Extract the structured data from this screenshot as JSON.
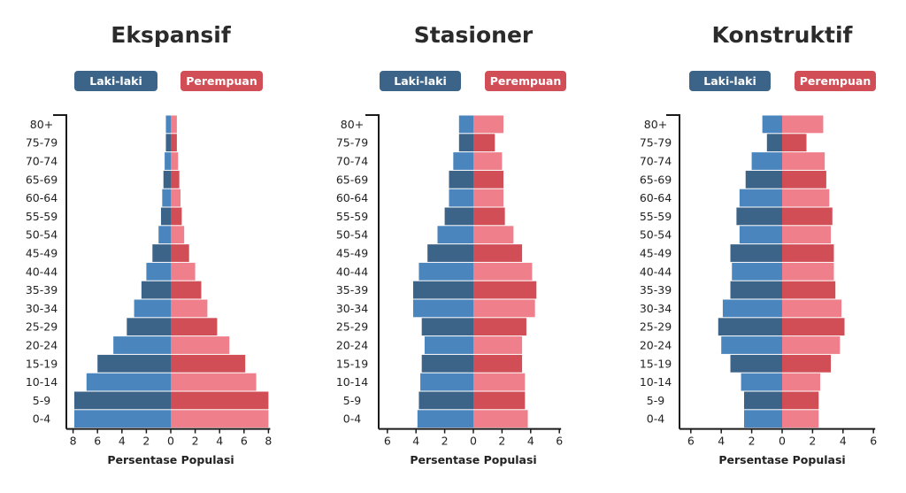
{
  "colors": {
    "male_dark": "#3c6488",
    "male_light": "#4a86bd",
    "female_dark": "#d14e57",
    "female_light": "#ef7f8b",
    "axis": "#1a1a1a"
  },
  "legend": {
    "male": "Laki-laki",
    "female": "Perempuan"
  },
  "xlabel": "Persentase Populasi",
  "chart_data": [
    {
      "type": "bar",
      "title": "Ekspansif",
      "xlabel": "Persentase Populasi",
      "xlim": [
        -8,
        8
      ],
      "xticks": [
        8,
        6,
        4,
        2,
        0,
        2,
        4,
        6,
        8
      ],
      "categories": [
        "0-4",
        "5-9",
        "10-14",
        "15-19",
        "20-24",
        "25-29",
        "30-34",
        "35-39",
        "40-44",
        "45-49",
        "50-54",
        "55-59",
        "60-64",
        "65-69",
        "70-74",
        "75-79",
        "80+"
      ],
      "series": [
        {
          "name": "Laki-laki",
          "values": [
            7.9,
            7.9,
            6.9,
            6.0,
            4.7,
            3.6,
            3.0,
            2.4,
            2.0,
            1.5,
            1.0,
            0.8,
            0.7,
            0.6,
            0.5,
            0.4,
            0.4
          ]
        },
        {
          "name": "Perempuan",
          "values": [
            8.0,
            8.0,
            7.0,
            6.1,
            4.8,
            3.8,
            3.0,
            2.5,
            2.0,
            1.5,
            1.1,
            0.9,
            0.8,
            0.7,
            0.6,
            0.5,
            0.5
          ]
        }
      ]
    },
    {
      "type": "bar",
      "title": "Stasioner",
      "xlabel": "Persentase Populasi",
      "xlim": [
        -6,
        6
      ],
      "xticks": [
        6,
        4,
        2,
        0,
        2,
        4,
        6
      ],
      "categories": [
        "0-4",
        "5-9",
        "10-14",
        "15-19",
        "20-24",
        "25-29",
        "30-34",
        "35-39",
        "40-44",
        "45-49",
        "50-54",
        "55-59",
        "60-64",
        "65-69",
        "70-74",
        "75-79",
        "80+"
      ],
      "series": [
        {
          "name": "Laki-laki",
          "values": [
            3.9,
            3.8,
            3.7,
            3.6,
            3.4,
            3.6,
            4.2,
            4.2,
            3.8,
            3.2,
            2.5,
            2.0,
            1.7,
            1.7,
            1.4,
            1.0,
            1.0
          ]
        },
        {
          "name": "Perempuan",
          "values": [
            3.8,
            3.6,
            3.6,
            3.4,
            3.4,
            3.7,
            4.3,
            4.4,
            4.1,
            3.4,
            2.8,
            2.2,
            2.1,
            2.1,
            2.0,
            1.5,
            2.1
          ]
        }
      ]
    },
    {
      "type": "bar",
      "title": "Konstruktif",
      "xlabel": "Persentase Populasi",
      "xlim": [
        -6,
        6
      ],
      "xticks": [
        6,
        4,
        2,
        0,
        2,
        4,
        6
      ],
      "categories": [
        "0-4",
        "5-9",
        "10-14",
        "15-19",
        "20-24",
        "25-29",
        "30-34",
        "35-39",
        "40-44",
        "45-49",
        "50-54",
        "55-59",
        "60-64",
        "65-69",
        "70-74",
        "75-79",
        "80+"
      ],
      "series": [
        {
          "name": "Laki-laki",
          "values": [
            2.5,
            2.5,
            2.7,
            3.4,
            4.0,
            4.2,
            3.9,
            3.4,
            3.3,
            3.4,
            2.8,
            3.0,
            2.8,
            2.4,
            2.0,
            1.0,
            1.3
          ]
        },
        {
          "name": "Perempuan",
          "values": [
            2.4,
            2.4,
            2.5,
            3.2,
            3.8,
            4.1,
            3.9,
            3.5,
            3.4,
            3.4,
            3.2,
            3.3,
            3.1,
            2.9,
            2.8,
            1.6,
            2.7
          ]
        }
      ]
    }
  ]
}
